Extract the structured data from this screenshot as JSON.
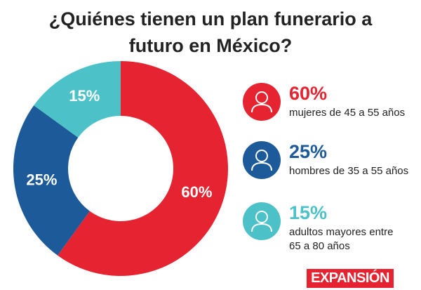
{
  "chart_data": {
    "type": "donut",
    "title": "¿Quiénes tienen un plan funerario a futuro en México?",
    "categories": [
      "mujeres de 45 a 55 años",
      "hombres de 35 a 55 años",
      "adultos mayores entre 65 a 80 años"
    ],
    "series": [
      {
        "values": [
          60,
          25,
          15
        ],
        "value_labels": [
          "60%",
          "25%",
          "15%"
        ],
        "colors": [
          "#e62330",
          "#1c5a9a",
          "#4cc2c8"
        ]
      }
    ]
  },
  "brand": "EXPANSIÓN"
}
